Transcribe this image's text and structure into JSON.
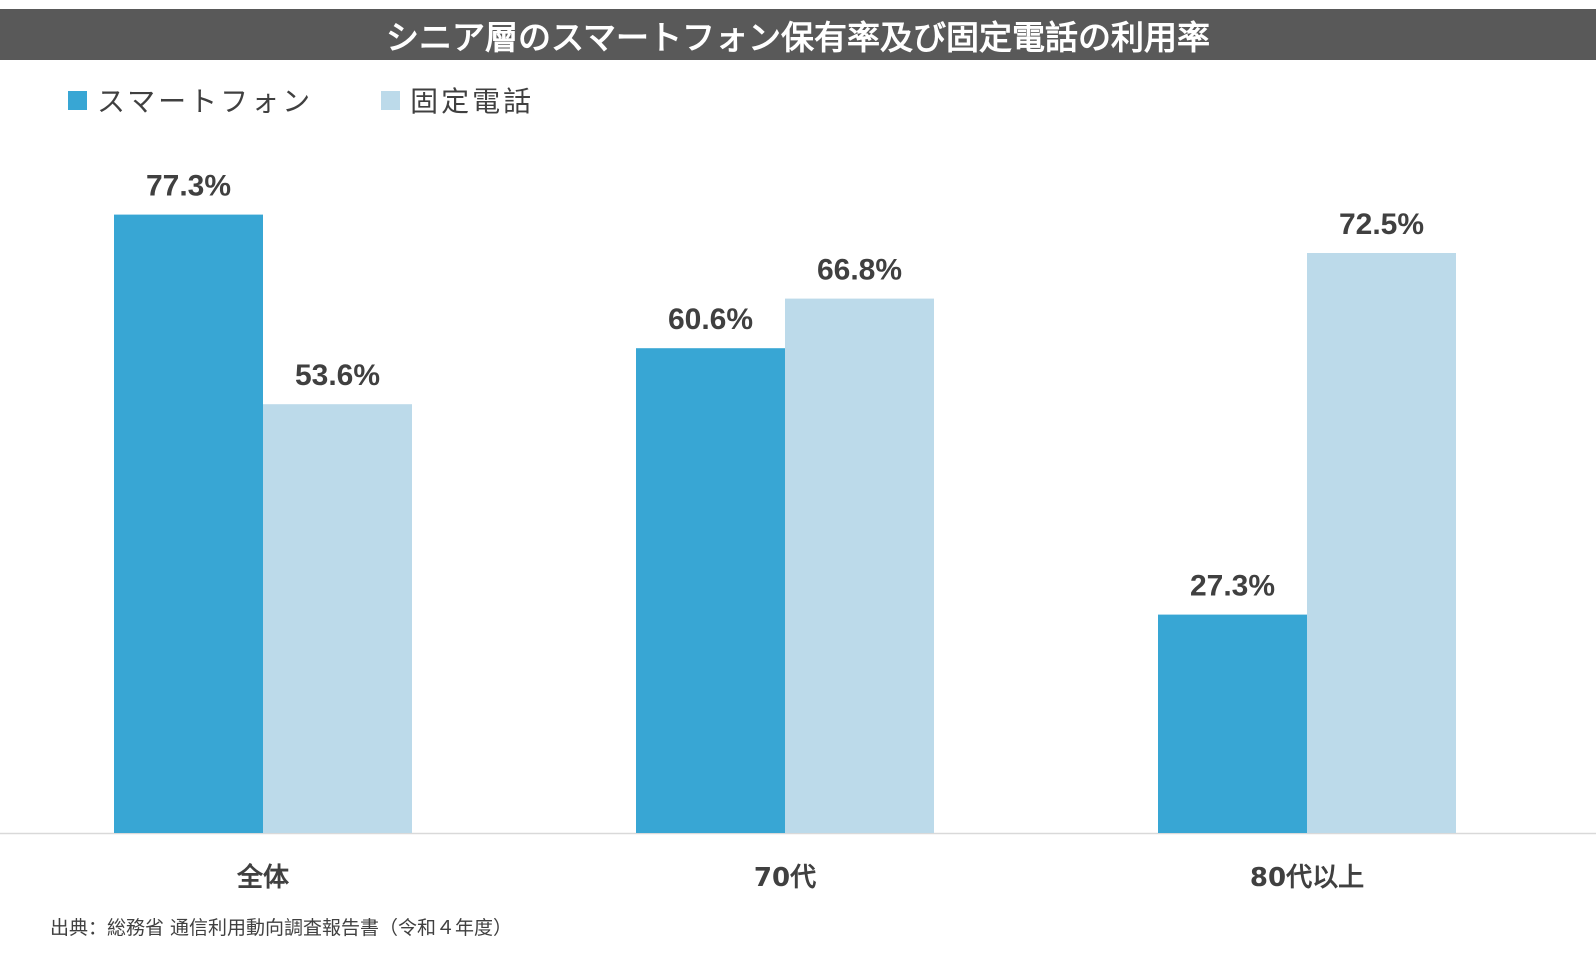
{
  "chart_data": {
    "type": "bar",
    "title": "シニア層のスマートフォン保有率及び固定電話の利用率",
    "categories": [
      "全体",
      "70代",
      "80代以上"
    ],
    "series": [
      {
        "name": "スマートフォン",
        "values": [
          77.3,
          60.6,
          27.3
        ],
        "labels": [
          "77.3%",
          "60.6%",
          "27.3%"
        ],
        "color": "#38A6D4"
      },
      {
        "name": "固定電話",
        "values": [
          53.6,
          66.8,
          72.5
        ],
        "labels": [
          "53.6%",
          "66.8%",
          "72.5%"
        ],
        "color": "#BCDAEA"
      }
    ],
    "ylim": [
      0,
      100
    ],
    "grid": false,
    "legend_position": "top-left",
    "source": "出典：総務省 通信利用動向調査報告書（令和４年度）"
  },
  "colors": {
    "title_bar": "#595959",
    "axis_line": "#D9D9D9",
    "label_text": "#404040"
  }
}
